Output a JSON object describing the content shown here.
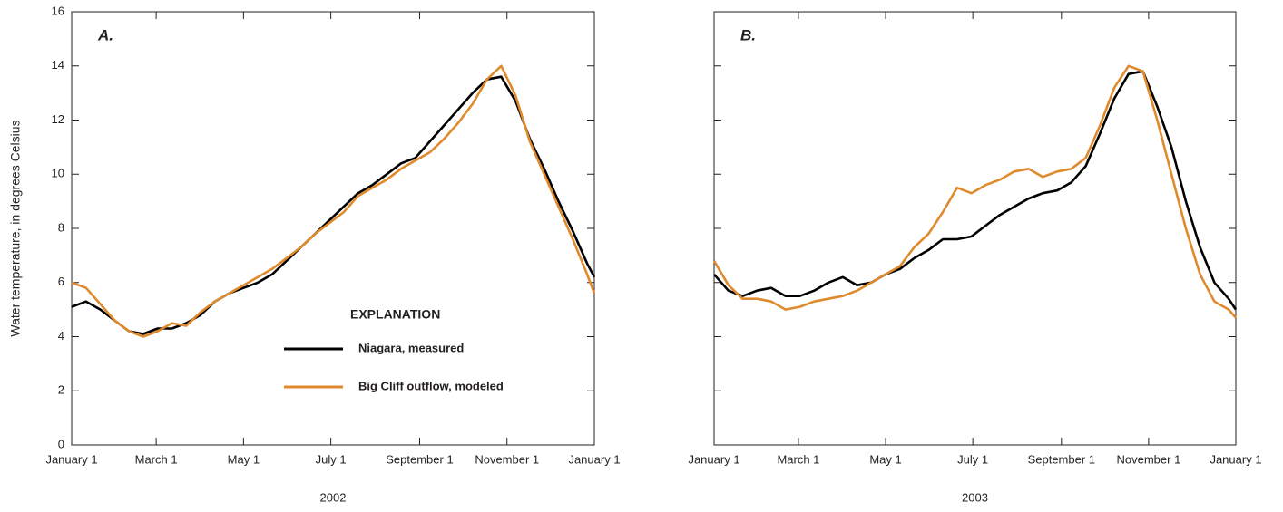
{
  "chart_data": [
    {
      "type": "line",
      "label": "A.",
      "ylabel": "Water temperature, in degrees Celsius",
      "xlabel": "2002",
      "x": [
        0,
        10,
        20,
        30,
        40,
        50,
        60,
        70,
        80,
        90,
        100,
        110,
        120,
        130,
        140,
        150,
        160,
        170,
        180,
        190,
        200,
        210,
        220,
        230,
        240,
        250,
        260,
        270,
        280,
        290,
        300,
        310,
        320,
        330,
        340,
        350,
        360,
        365
      ],
      "series": [
        {
          "name": "Niagara, measured",
          "color": "#000000",
          "values": [
            5.1,
            5.3,
            5.0,
            4.6,
            4.2,
            4.1,
            4.3,
            4.3,
            4.5,
            4.8,
            5.3,
            5.6,
            5.8,
            6.0,
            6.3,
            6.8,
            7.3,
            7.8,
            8.3,
            8.8,
            9.3,
            9.6,
            10.0,
            10.4,
            10.6,
            11.2,
            11.8,
            12.4,
            13.0,
            13.5,
            13.6,
            12.7,
            11.3,
            10.2,
            9.0,
            7.9,
            6.7,
            6.2
          ]
        },
        {
          "name": "Big Cliff outflow, modeled",
          "color": "#e08a2e",
          "values": [
            6.0,
            5.8,
            5.2,
            4.6,
            4.2,
            4.0,
            4.2,
            4.5,
            4.4,
            4.9,
            5.3,
            5.6,
            5.9,
            6.2,
            6.5,
            6.9,
            7.3,
            7.8,
            8.2,
            8.6,
            9.2,
            9.5,
            9.8,
            10.2,
            10.5,
            10.8,
            11.3,
            11.9,
            12.6,
            13.5,
            14.0,
            12.9,
            11.2,
            10.0,
            8.8,
            7.6,
            6.3,
            5.6
          ]
        }
      ],
      "legend_title": "EXPLANATION",
      "xlim": [
        0,
        365
      ],
      "xticks": [
        {
          "value": 0,
          "label": "January 1"
        },
        {
          "value": 59,
          "label": "March 1"
        },
        {
          "value": 120,
          "label": "May 1"
        },
        {
          "value": 181,
          "label": "July 1"
        },
        {
          "value": 243,
          "label": "September 1"
        },
        {
          "value": 304,
          "label": "November 1"
        },
        {
          "value": 365,
          "label": "January 1"
        }
      ],
      "ylim": [
        0,
        16
      ],
      "yticks": [
        0,
        2,
        4,
        6,
        8,
        10,
        12,
        14,
        16
      ],
      "ytick_labels": true
    },
    {
      "type": "line",
      "label": "B.",
      "xlabel": "2003",
      "x": [
        0,
        10,
        20,
        30,
        40,
        50,
        60,
        70,
        80,
        90,
        100,
        110,
        120,
        130,
        140,
        150,
        160,
        170,
        180,
        190,
        200,
        210,
        220,
        230,
        240,
        250,
        260,
        270,
        280,
        290,
        300,
        310,
        320,
        330,
        340,
        350,
        360,
        365
      ],
      "series": [
        {
          "color": "#000000",
          "values": [
            6.3,
            5.7,
            5.5,
            5.7,
            5.8,
            5.5,
            5.5,
            5.7,
            6.0,
            6.2,
            5.9,
            6.0,
            6.3,
            6.5,
            6.9,
            7.2,
            7.6,
            7.6,
            7.7,
            8.1,
            8.5,
            8.8,
            9.1,
            9.3,
            9.4,
            9.7,
            10.3,
            11.5,
            12.8,
            13.7,
            13.8,
            12.5,
            11.0,
            9.0,
            7.3,
            6.0,
            5.4,
            5.0
          ]
        },
        {
          "color": "#e08a2e",
          "values": [
            6.8,
            5.9,
            5.4,
            5.4,
            5.3,
            5.0,
            5.1,
            5.3,
            5.4,
            5.5,
            5.7,
            6.0,
            6.3,
            6.6,
            7.3,
            7.8,
            8.6,
            9.5,
            9.3,
            9.6,
            9.8,
            10.1,
            10.2,
            9.9,
            10.1,
            10.2,
            10.6,
            11.8,
            13.2,
            14.0,
            13.8,
            12.0,
            10.0,
            8.0,
            6.3,
            5.3,
            5.0,
            4.7
          ]
        }
      ],
      "xlim": [
        0,
        365
      ],
      "xticks": [
        {
          "value": 0,
          "label": "January 1"
        },
        {
          "value": 59,
          "label": "March 1"
        },
        {
          "value": 120,
          "label": "May 1"
        },
        {
          "value": 181,
          "label": "July 1"
        },
        {
          "value": 243,
          "label": "September 1"
        },
        {
          "value": 304,
          "label": "November 1"
        },
        {
          "value": 365,
          "label": "January 1"
        }
      ],
      "ylim": [
        0,
        16
      ],
      "yticks": [
        0,
        2,
        4,
        6,
        8,
        10,
        12,
        14,
        16
      ],
      "ytick_labels": false
    }
  ]
}
